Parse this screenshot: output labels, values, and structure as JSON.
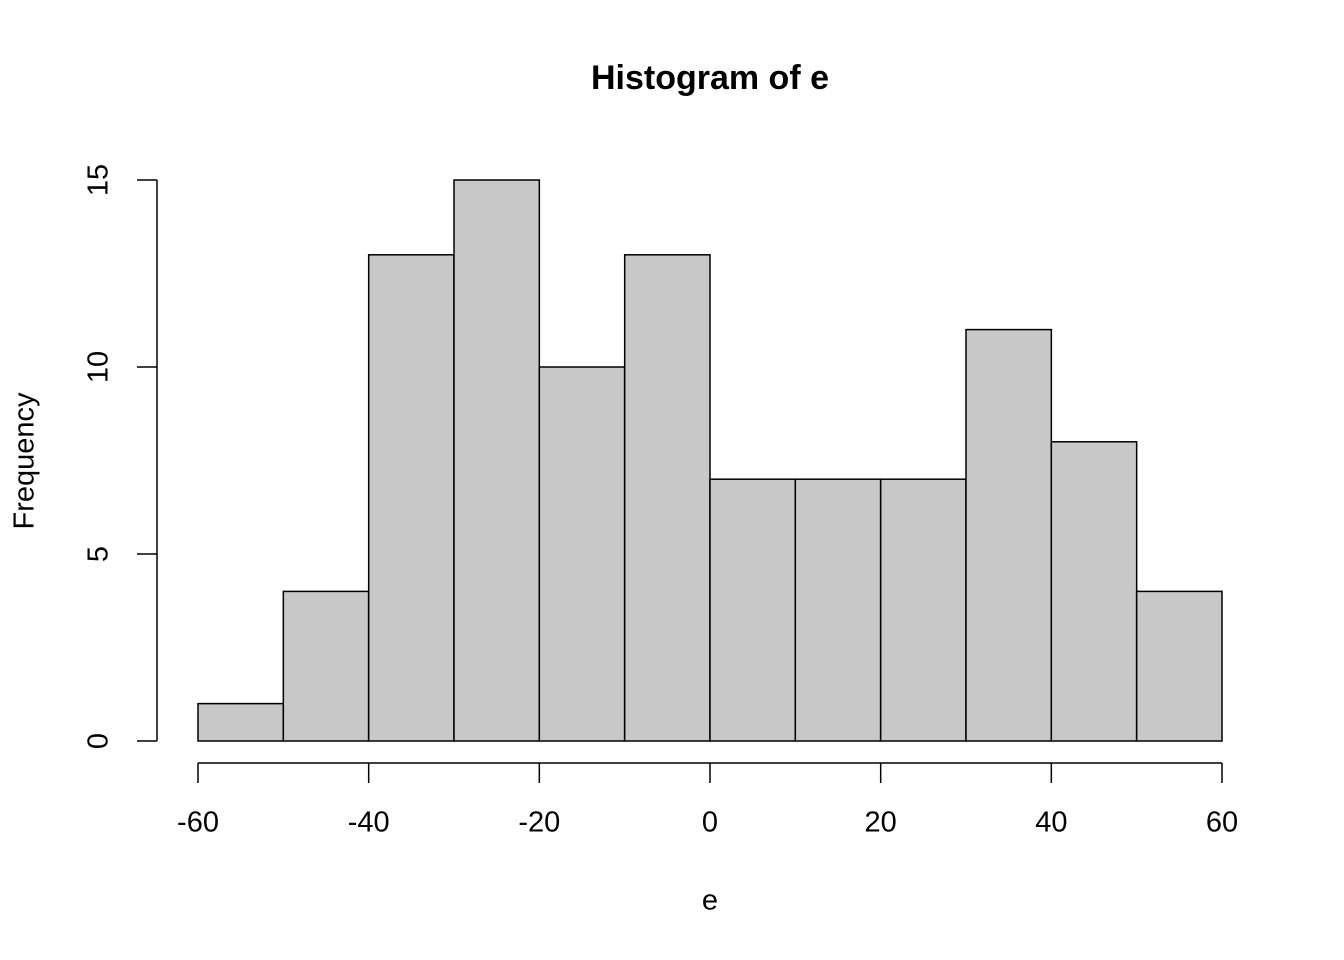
{
  "chart_data": {
    "type": "histogram",
    "title": "Histogram of e",
    "xlabel": "e",
    "ylabel": "Frequency",
    "bins": [
      -60,
      -50,
      -40,
      -30,
      -20,
      -10,
      0,
      10,
      20,
      30,
      40,
      50,
      60
    ],
    "values": [
      1,
      4,
      13,
      15,
      10,
      13,
      7,
      7,
      7,
      11,
      8,
      4
    ],
    "color": "#c8c8c8",
    "xlim": [
      -60,
      60
    ],
    "xticks": [
      -60,
      -40,
      -20,
      0,
      20,
      40,
      60
    ],
    "ylim": [
      0,
      15
    ],
    "yticks": [
      0,
      5,
      10,
      15
    ],
    "grid": false
  }
}
